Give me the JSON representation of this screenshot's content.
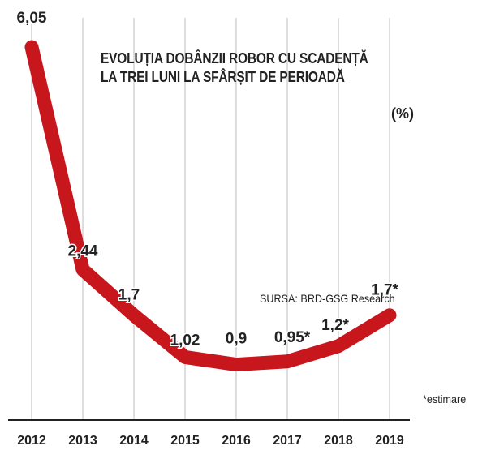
{
  "title_line_1": "EVOLUȚIA DOBÂNZII ROBOR CU SCADENȚĂ",
  "title_line_2": "LA TREI LUNI LA SFÂRȘIT DE PERIOADĂ",
  "unit": "(%)",
  "source": "SURSA: BRD-GSG Research",
  "footnote": "*estimare",
  "colors": {
    "line": "#C8161D",
    "grid": "#bdbdbd",
    "axis": "#222222",
    "text": "#222222"
  },
  "chart_data": {
    "type": "line",
    "title": "EVOLUȚIA DOBÂNZII ROBOR CU SCADENȚĂ LA TREI LUNI LA SFÂRȘIT DE PERIOADĂ",
    "ylabel": "(%)",
    "xlabel": "",
    "categories": [
      "2012",
      "2013",
      "2014",
      "2015",
      "2016",
      "2017",
      "2018",
      "2019"
    ],
    "values": [
      6.05,
      2.44,
      1.7,
      1.02,
      0.9,
      0.95,
      1.2,
      1.7
    ],
    "data_labels": [
      "6,05",
      "2,44",
      "1,7",
      "1,02",
      "0,9",
      "0,95*",
      "1,2*",
      "1,7*"
    ],
    "estimated": [
      false,
      false,
      false,
      false,
      false,
      true,
      true,
      true
    ],
    "grid": "vertical",
    "legend": "none"
  }
}
